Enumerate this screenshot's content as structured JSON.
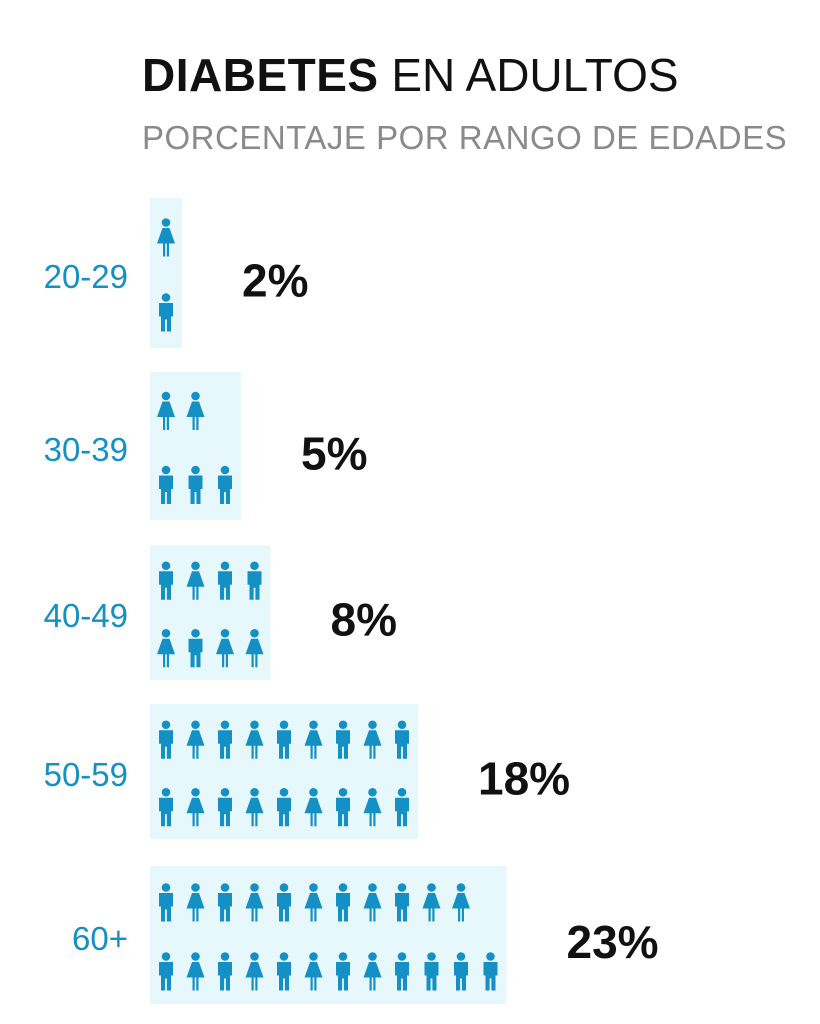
{
  "header": {
    "title_bold": "DIABETES",
    "title_rest": " EN ADULTOS",
    "subtitle": "PORCENTAJE POR RANGO DE EDADES"
  },
  "colors": {
    "figure": "#1590c4",
    "panel": "#e6f8fb",
    "age_label": "#1590c4",
    "percent": "#111111"
  },
  "icons": [
    "man-icon",
    "woman-icon"
  ],
  "chart_data": {
    "type": "bar",
    "title": "DIABETES EN ADULTOS",
    "subtitle": "PORCENTAJE POR RANGO DE EDADES",
    "categories": [
      "20-29",
      "30-39",
      "40-49",
      "50-59",
      "60+"
    ],
    "values": [
      2,
      5,
      8,
      18,
      23
    ],
    "value_labels": [
      "2%",
      "5%",
      "8%",
      "18%",
      "23%"
    ],
    "unit": "%",
    "orientation": "horizontal",
    "rows": [
      {
        "top": [
          "W"
        ],
        "bottom": [
          "M"
        ]
      },
      {
        "top": [
          "W",
          "W"
        ],
        "bottom": [
          "M",
          "M",
          "M"
        ]
      },
      {
        "top": [
          "M",
          "W",
          "M",
          "M"
        ],
        "bottom": [
          "W",
          "M",
          "W",
          "W"
        ]
      },
      {
        "top": [
          "M",
          "W",
          "M",
          "W",
          "M",
          "W",
          "M",
          "W",
          "M"
        ],
        "bottom": [
          "M",
          "W",
          "M",
          "W",
          "M",
          "W",
          "M",
          "W",
          "M"
        ]
      },
      {
        "top": [
          "M",
          "W",
          "M",
          "W",
          "M",
          "W",
          "M",
          "W",
          "M",
          "W",
          "W"
        ],
        "bottom": [
          "M",
          "W",
          "M",
          "W",
          "M",
          "W",
          "M",
          "W",
          "M",
          "M",
          "M",
          "M"
        ]
      }
    ]
  }
}
